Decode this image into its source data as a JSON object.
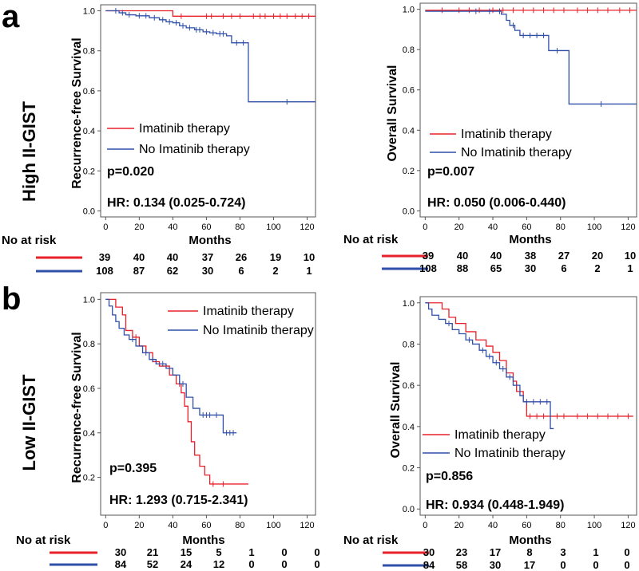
{
  "figure": {
    "panel_a_letter": "a",
    "panel_b_letter": "b",
    "group_a_label": "High II-GIST",
    "group_b_label": "Low II-GIST"
  },
  "chart_data": [
    {
      "id": "a-rfs",
      "type": "line",
      "kind": "kaplan-meier",
      "xlabel": "Months",
      "ylabel": "Recurrence-free Survival",
      "xlim": [
        -3,
        125
      ],
      "ylim": [
        -0.03,
        1.03
      ],
      "xticks": [
        0,
        20,
        40,
        60,
        80,
        100,
        120
      ],
      "yticks": [
        0.0,
        0.2,
        0.4,
        0.6,
        0.8,
        1.0
      ],
      "ytick_labels": [
        "0.0",
        "0.2",
        "0.4",
        "0.6",
        "0.8",
        "1.0"
      ],
      "series": [
        {
          "name": "Imatinib therapy",
          "color": "#e8202a",
          "steps": [
            [
              0,
              1.0
            ],
            [
              40,
              0.973
            ],
            [
              125,
              0.973
            ]
          ],
          "censor": [
            45,
            60,
            63,
            70,
            75,
            80,
            88,
            92,
            95,
            100,
            104,
            108,
            113,
            117,
            121
          ]
        },
        {
          "name": "No Imatinib therapy",
          "color": "#2f4fa8",
          "steps": [
            [
              0,
              1.0
            ],
            [
              8,
              0.99
            ],
            [
              12,
              0.98
            ],
            [
              18,
              0.975
            ],
            [
              26,
              0.965
            ],
            [
              32,
              0.955
            ],
            [
              36,
              0.945
            ],
            [
              40,
              0.94
            ],
            [
              44,
              0.925
            ],
            [
              48,
              0.915
            ],
            [
              53,
              0.905
            ],
            [
              58,
              0.895
            ],
            [
              62,
              0.89
            ],
            [
              66,
              0.885
            ],
            [
              72,
              0.875
            ],
            [
              75,
              0.84
            ],
            [
              85,
              0.545
            ],
            [
              125,
              0.545
            ]
          ],
          "censor": [
            6,
            10,
            14,
            20,
            24,
            29,
            34,
            38,
            42,
            46,
            50,
            54,
            56,
            60,
            64,
            68,
            70,
            78,
            82,
            108
          ]
        }
      ],
      "legend": {
        "entries": [
          "Imatinib therapy",
          "No Imatinib therapy"
        ],
        "placement": "lower-left"
      },
      "annotations": {
        "p_value": "p=0.020",
        "hr": "HR: 0.134 (0.025-0.724)"
      },
      "risk_table": {
        "label": "No at risk",
        "rows": [
          {
            "color": "#e8202a",
            "values": [
              "39",
              "40",
              "40",
              "37",
              "26",
              "19",
              "10"
            ]
          },
          {
            "color": "#2f4fa8",
            "values": [
              "108",
              "87",
              "62",
              "30",
              "6",
              "2",
              "1"
            ]
          }
        ]
      }
    },
    {
      "id": "a-os",
      "type": "line",
      "kind": "kaplan-meier",
      "xlabel": "Months",
      "ylabel": "Overall Survival",
      "xlim": [
        -3,
        125
      ],
      "ylim": [
        -0.03,
        1.03
      ],
      "xticks": [
        0,
        20,
        40,
        60,
        80,
        100,
        120
      ],
      "yticks": [
        0.0,
        0.2,
        0.4,
        0.6,
        0.8,
        1.0
      ],
      "ytick_labels": [
        "0.0",
        "0.2",
        "0.4",
        "0.6",
        "0.8",
        "1.0"
      ],
      "series": [
        {
          "name": "Imatinib therapy",
          "color": "#e8202a",
          "steps": [
            [
              0,
              0.995
            ],
            [
              125,
              0.995
            ]
          ],
          "censor": [
            10,
            20,
            26,
            32,
            40,
            46,
            52,
            58,
            64,
            70,
            76,
            82,
            90,
            96,
            102,
            108,
            115,
            121
          ]
        },
        {
          "name": "No Imatinib therapy",
          "color": "#2f4fa8",
          "steps": [
            [
              0,
              0.99
            ],
            [
              45,
              0.975
            ],
            [
              48,
              0.945
            ],
            [
              50,
              0.92
            ],
            [
              53,
              0.895
            ],
            [
              56,
              0.87
            ],
            [
              73,
              0.795
            ],
            [
              85,
              0.53
            ],
            [
              125,
              0.53
            ]
          ],
          "censor": [
            30,
            38,
            44,
            52,
            58,
            62,
            66,
            70,
            78,
            104
          ]
        }
      ],
      "legend": {
        "entries": [
          "Imatinib therapy",
          "No Imatinib therapy"
        ],
        "placement": "lower-left"
      },
      "annotations": {
        "p_value": "p=0.007",
        "hr": "HR: 0.050 (0.006-0.440)"
      },
      "risk_table": {
        "label": "No at risk",
        "rows": [
          {
            "color": "#e8202a",
            "values": [
              "39",
              "40",
              "40",
              "38",
              "27",
              "20",
              "10"
            ]
          },
          {
            "color": "#2f4fa8",
            "values": [
              "108",
              "88",
              "65",
              "30",
              "6",
              "2",
              "1"
            ]
          }
        ]
      }
    },
    {
      "id": "b-rfs",
      "type": "line",
      "kind": "kaplan-meier",
      "xlabel": "Months",
      "ylabel": "Recurrence-free Survival",
      "xlim": [
        -3,
        125
      ],
      "ylim": [
        0.03,
        1.03
      ],
      "xticks": [
        0,
        20,
        40,
        60,
        80,
        100,
        120
      ],
      "yticks": [
        0.2,
        0.4,
        0.6,
        0.8,
        1.0
      ],
      "ytick_labels": [
        "0.2",
        "0.4",
        "0.6",
        "0.8",
        "1.0"
      ],
      "series": [
        {
          "name": "Imatinib therapy",
          "color": "#e8202a",
          "steps": [
            [
              0,
              1.0
            ],
            [
              6,
              0.965
            ],
            [
              10,
              0.93
            ],
            [
              12,
              0.86
            ],
            [
              16,
              0.83
            ],
            [
              20,
              0.79
            ],
            [
              24,
              0.76
            ],
            [
              28,
              0.72
            ],
            [
              32,
              0.7
            ],
            [
              38,
              0.66
            ],
            [
              42,
              0.62
            ],
            [
              45,
              0.58
            ],
            [
              47,
              0.52
            ],
            [
              49,
              0.45
            ],
            [
              51,
              0.36
            ],
            [
              53,
              0.3
            ],
            [
              56,
              0.25
            ],
            [
              59,
              0.21
            ],
            [
              62,
              0.17
            ],
            [
              85,
              0.17
            ]
          ],
          "censor": [
            18,
            30,
            44,
            64,
            70
          ]
        },
        {
          "name": "No Imatinib therapy",
          "color": "#2f4fa8",
          "steps": [
            [
              0,
              1.0
            ],
            [
              2,
              0.97
            ],
            [
              4,
              0.93
            ],
            [
              6,
              0.9
            ],
            [
              8,
              0.87
            ],
            [
              11,
              0.84
            ],
            [
              14,
              0.82
            ],
            [
              18,
              0.79
            ],
            [
              22,
              0.76
            ],
            [
              26,
              0.73
            ],
            [
              30,
              0.71
            ],
            [
              36,
              0.69
            ],
            [
              40,
              0.66
            ],
            [
              44,
              0.62
            ],
            [
              48,
              0.56
            ],
            [
              52,
              0.51
            ],
            [
              56,
              0.48
            ],
            [
              70,
              0.4
            ],
            [
              78,
              0.4
            ]
          ],
          "censor": [
            16,
            24,
            28,
            34,
            46,
            58,
            60,
            62,
            66,
            72,
            74,
            76
          ]
        }
      ],
      "legend": {
        "entries": [
          "Imatinib therapy",
          "No Imatinib therapy"
        ],
        "placement": "top-right"
      },
      "annotations": {
        "p_value": "p=0.395",
        "hr": "HR: 1.293 (0.715-2.341)"
      },
      "risk_table": {
        "label": "No at risk",
        "rows": [
          {
            "color": "#e8202a",
            "values": [
              "30",
              "21",
              "15",
              "5",
              "1",
              "0",
              "0"
            ]
          },
          {
            "color": "#2f4fa8",
            "values": [
              "84",
              "52",
              "24",
              "12",
              "0",
              "0",
              "0"
            ]
          }
        ]
      }
    },
    {
      "id": "b-os",
      "type": "line",
      "kind": "kaplan-meier",
      "xlabel": "Months",
      "ylabel": "Overall Survival",
      "xlim": [
        -3,
        125
      ],
      "ylim": [
        -0.03,
        1.03
      ],
      "xticks": [
        0,
        20,
        40,
        60,
        80,
        100,
        120
      ],
      "yticks": [
        0.0,
        0.2,
        0.4,
        0.6,
        0.8,
        1.0
      ],
      "ytick_labels": [
        "0.0",
        "0.2",
        "0.4",
        "0.6",
        "0.8",
        "1.0"
      ],
      "series": [
        {
          "name": "Imatinib therapy",
          "color": "#e8202a",
          "steps": [
            [
              0,
              1.0
            ],
            [
              10,
              0.97
            ],
            [
              14,
              0.93
            ],
            [
              18,
              0.9
            ],
            [
              24,
              0.86
            ],
            [
              30,
              0.82
            ],
            [
              36,
              0.79
            ],
            [
              40,
              0.76
            ],
            [
              44,
              0.72
            ],
            [
              48,
              0.66
            ],
            [
              52,
              0.62
            ],
            [
              54,
              0.57
            ],
            [
              58,
              0.52
            ],
            [
              60,
              0.45
            ],
            [
              123,
              0.45
            ]
          ],
          "censor": [
            62,
            66,
            70,
            78,
            82,
            90,
            96,
            102,
            108,
            114,
            120
          ]
        },
        {
          "name": "No Imatinib therapy",
          "color": "#2f4fa8",
          "steps": [
            [
              0,
              1.0
            ],
            [
              2,
              0.97
            ],
            [
              4,
              0.94
            ],
            [
              8,
              0.92
            ],
            [
              12,
              0.9
            ],
            [
              16,
              0.87
            ],
            [
              20,
              0.85
            ],
            [
              24,
              0.82
            ],
            [
              28,
              0.8
            ],
            [
              32,
              0.77
            ],
            [
              36,
              0.74
            ],
            [
              40,
              0.71
            ],
            [
              44,
              0.68
            ],
            [
              48,
              0.64
            ],
            [
              52,
              0.6
            ],
            [
              56,
              0.55
            ],
            [
              58,
              0.52
            ],
            [
              74,
              0.39
            ],
            [
              76,
              0.39
            ]
          ],
          "censor": [
            14,
            26,
            34,
            38,
            42,
            46,
            50,
            60,
            64,
            68,
            72
          ]
        }
      ],
      "legend": {
        "entries": [
          "Imatinib therapy",
          "No Imatinib therapy"
        ],
        "placement": "lower-left"
      },
      "annotations": {
        "p_value": "p=0.856",
        "hr": "HR: 0.934 (0.448-1.949)"
      },
      "risk_table": {
        "label": "No at risk",
        "rows": [
          {
            "color": "#e8202a",
            "values": [
              "30",
              "23",
              "17",
              "8",
              "3",
              "1",
              "0"
            ]
          },
          {
            "color": "#2f4fa8",
            "values": [
              "84",
              "58",
              "30",
              "17",
              "0",
              "0",
              "0"
            ]
          }
        ]
      }
    }
  ]
}
